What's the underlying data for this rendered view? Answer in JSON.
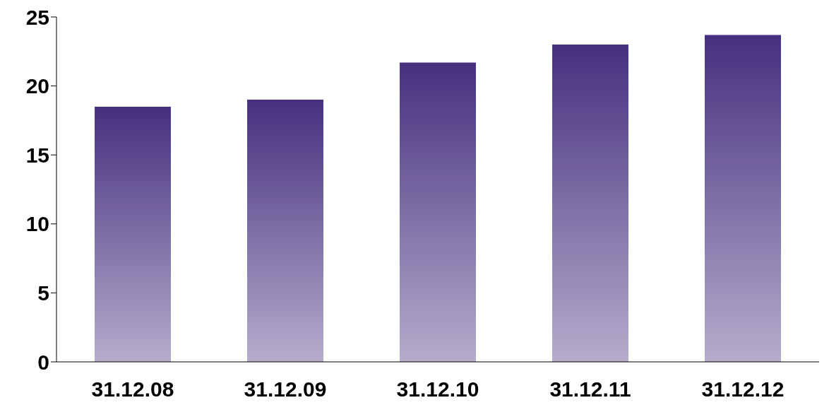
{
  "chart_data": {
    "type": "bar",
    "categories": [
      "31.12.08",
      "31.12.09",
      "31.12.10",
      "31.12.11",
      "31.12.12"
    ],
    "values": [
      18.5,
      19.0,
      21.7,
      23.0,
      23.7
    ],
    "color": "#46307f",
    "ylim": [
      0,
      25
    ],
    "yticks": [
      0,
      5,
      10,
      15,
      20,
      25
    ],
    "grid": false
  }
}
